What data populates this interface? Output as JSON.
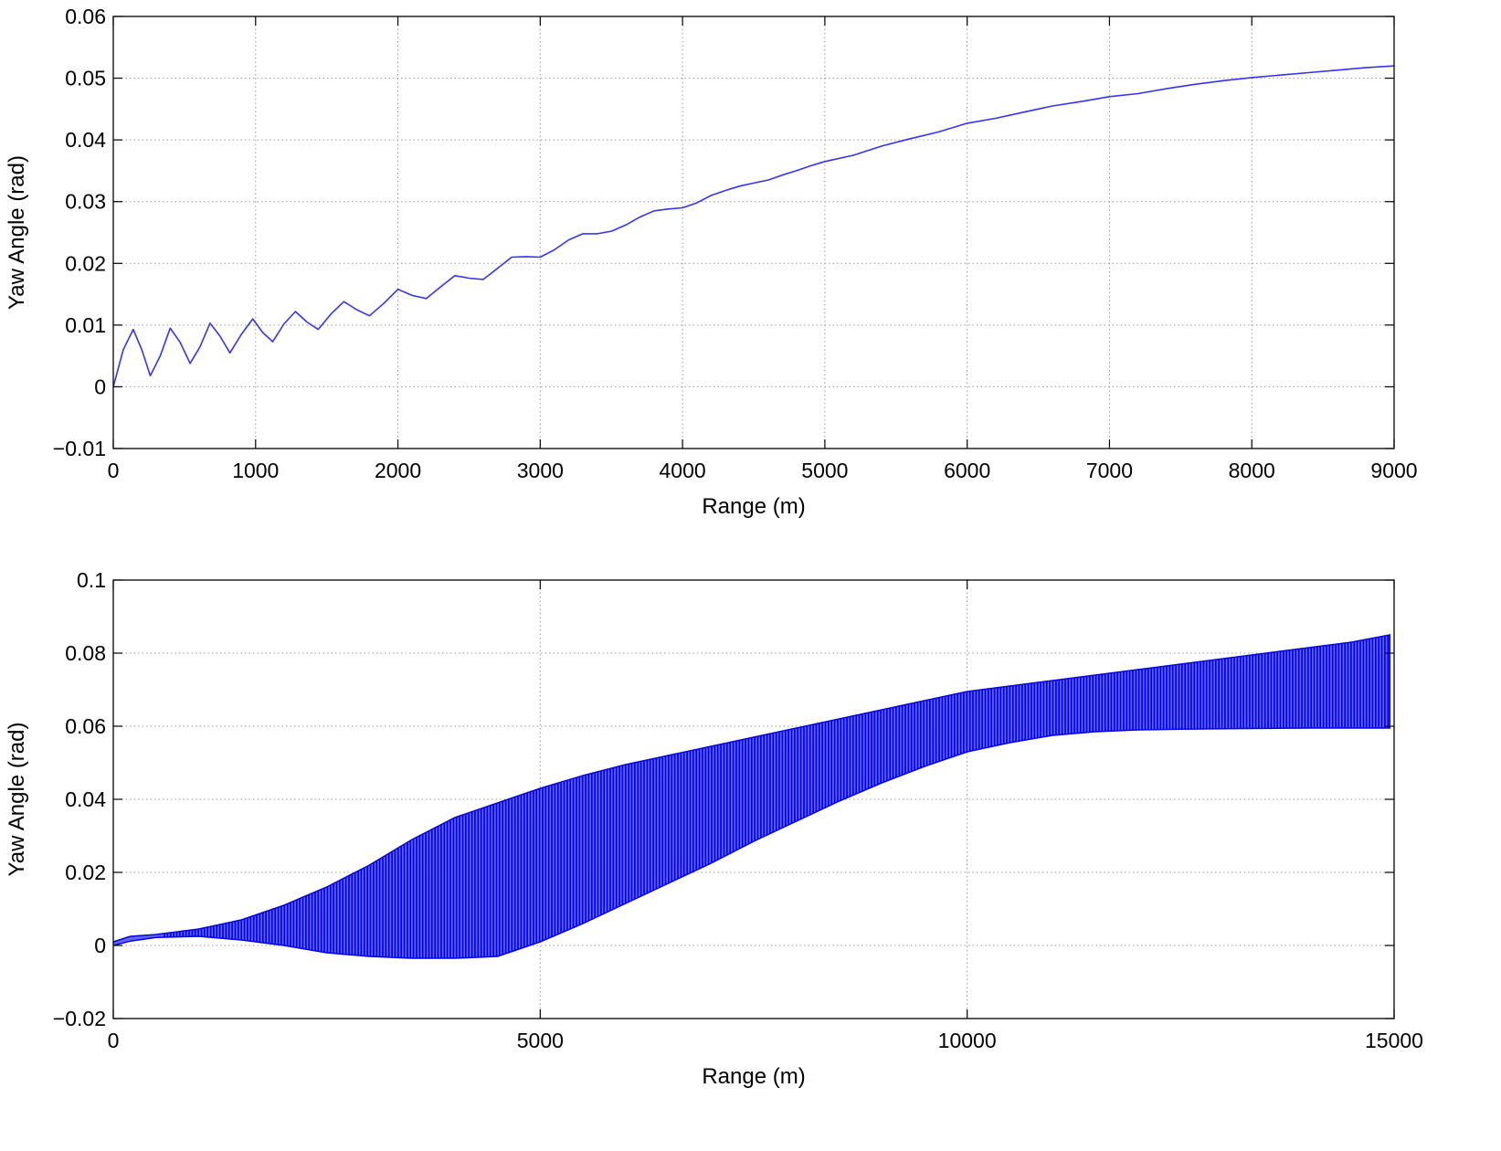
{
  "chart_data": [
    {
      "type": "line",
      "title": "",
      "xlabel": "Range (m)",
      "ylabel": "Yaw Angle (rad)",
      "xlim": [
        0,
        9000
      ],
      "ylim": [
        -0.01,
        0.06
      ],
      "xticks": [
        0,
        1000,
        2000,
        3000,
        4000,
        5000,
        6000,
        7000,
        8000,
        9000
      ],
      "xtick_labels": [
        "0",
        "1000",
        "2000",
        "3000",
        "4000",
        "5000",
        "6000",
        "7000",
        "8000",
        "9000"
      ],
      "yticks": [
        -0.01,
        0,
        0.01,
        0.02,
        0.03,
        0.04,
        0.05,
        0.06
      ],
      "ytick_labels": [
        "−0.01",
        "0",
        "0.01",
        "0.02",
        "0.03",
        "0.04",
        "0.05",
        "0.06"
      ],
      "grid": true,
      "series": [
        {
          "color": "#3333ff",
          "x": [
            0,
            70,
            140,
            200,
            260,
            330,
            400,
            470,
            540,
            610,
            680,
            750,
            820,
            900,
            980,
            1050,
            1120,
            1200,
            1280,
            1360,
            1440,
            1530,
            1620,
            1710,
            1800,
            1900,
            2000,
            2100,
            2200,
            2300,
            2400,
            2500,
            2600,
            2700,
            2800,
            2900,
            3000,
            3100,
            3200,
            3300,
            3400,
            3500,
            3600,
            3700,
            3800,
            3900,
            4000,
            4100,
            4200,
            4300,
            4400,
            4500,
            4600,
            4700,
            4800,
            4900,
            5000,
            5200,
            5400,
            5600,
            5800,
            6000,
            6200,
            6400,
            6600,
            6800,
            7000,
            7200,
            7400,
            7600,
            7800,
            8000,
            8200,
            8400,
            8600,
            8800,
            9000
          ],
          "y": [
            0.0,
            0.006,
            0.0093,
            0.006,
            0.0018,
            0.005,
            0.0095,
            0.0072,
            0.0038,
            0.0065,
            0.0103,
            0.0082,
            0.0055,
            0.0085,
            0.011,
            0.0088,
            0.0073,
            0.0102,
            0.0122,
            0.0105,
            0.0093,
            0.0118,
            0.0138,
            0.0125,
            0.0115,
            0.0135,
            0.0158,
            0.0148,
            0.0143,
            0.0162,
            0.018,
            0.0176,
            0.0174,
            0.0192,
            0.021,
            0.0211,
            0.021,
            0.0222,
            0.0238,
            0.0248,
            0.0248,
            0.0252,
            0.0262,
            0.0275,
            0.0285,
            0.0288,
            0.029,
            0.0298,
            0.031,
            0.0318,
            0.0325,
            0.033,
            0.0335,
            0.0343,
            0.035,
            0.0358,
            0.0365,
            0.0375,
            0.039,
            0.0402,
            0.0413,
            0.0427,
            0.0435,
            0.0445,
            0.0455,
            0.0462,
            0.047,
            0.0475,
            0.0483,
            0.049,
            0.0496,
            0.0501,
            0.0505,
            0.0509,
            0.0513,
            0.0517,
            0.052
          ]
        }
      ]
    },
    {
      "type": "area",
      "title": "",
      "xlabel": "Range (m)",
      "ylabel": "Yaw Angle (rad)",
      "xlim": [
        0,
        15000
      ],
      "ylim": [
        -0.02,
        0.1
      ],
      "xticks": [
        0,
        5000,
        10000,
        15000
      ],
      "xtick_labels": [
        "0",
        "5000",
        "10000",
        "15000"
      ],
      "yticks": [
        -0.02,
        0,
        0.02,
        0.04,
        0.06,
        0.08,
        0.1
      ],
      "ytick_labels": [
        "−0.02",
        "0",
        "0.02",
        "0.04",
        "0.06",
        "0.08",
        "0.1"
      ],
      "grid": true,
      "series": [
        {
          "color": "#0000ee",
          "fill_color": "#6666ff",
          "x": [
            0,
            200,
            500,
            1000,
            1500,
            2000,
            2500,
            3000,
            3500,
            4000,
            4500,
            5000,
            5500,
            6000,
            6500,
            7000,
            7500,
            8000,
            8500,
            9000,
            9500,
            10000,
            10500,
            11000,
            11500,
            12000,
            12500,
            13000,
            13500,
            14000,
            14500,
            14950
          ],
          "upper": [
            0.001,
            0.0025,
            0.003,
            0.0045,
            0.007,
            0.011,
            0.016,
            0.022,
            0.029,
            0.035,
            0.039,
            0.043,
            0.0465,
            0.0495,
            0.052,
            0.0545,
            0.057,
            0.0595,
            0.062,
            0.0645,
            0.067,
            0.0695,
            0.071,
            0.0725,
            0.074,
            0.0755,
            0.077,
            0.0785,
            0.08,
            0.0815,
            0.083,
            0.085
          ],
          "lower": [
            0.0,
            0.0012,
            0.0022,
            0.0025,
            0.0015,
            0.0,
            -0.002,
            -0.003,
            -0.0035,
            -0.0035,
            -0.003,
            0.001,
            0.006,
            0.0115,
            0.017,
            0.0225,
            0.0285,
            0.034,
            0.0395,
            0.0445,
            0.049,
            0.053,
            0.0555,
            0.0575,
            0.0585,
            0.059,
            0.0592,
            0.0593,
            0.0594,
            0.0595,
            0.0595,
            0.0595
          ]
        }
      ]
    }
  ]
}
